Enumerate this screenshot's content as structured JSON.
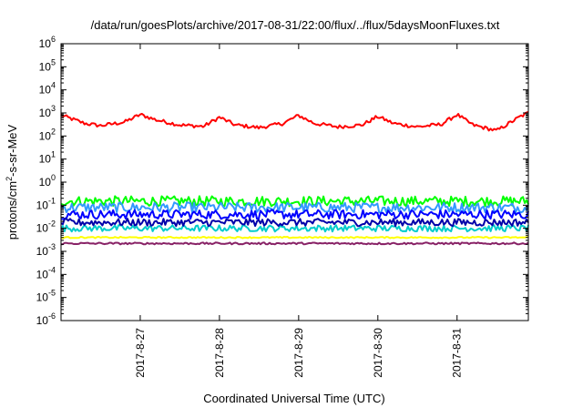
{
  "chart_data": {
    "type": "line",
    "title": "/data/run/goesPlots/archive/2017-08-31/22:00/flux/../flux/5daysMoonFluxes.txt",
    "xlabel": "Coordinated Universal Time (UTC)",
    "ylabel": "protons/cm2-s-sr-MeV",
    "ylabel_parts": {
      "main": "protons/cm",
      "sup": "2",
      "rest": "-s-sr-MeV"
    },
    "yscale": "log",
    "ylim": [
      1e-06,
      1000000.0
    ],
    "xlim": [
      0,
      5.9
    ],
    "x_tick_positions": [
      1,
      2,
      3,
      4,
      5
    ],
    "x_tick_labels": [
      "2017-8-27",
      "2017-8-28",
      "2017-8-29",
      "2017-8-30",
      "2017-8-31"
    ],
    "y_tick_exponents": [
      -6,
      -5,
      -4,
      -3,
      -2,
      -1,
      0,
      1,
      2,
      3,
      4,
      5,
      6
    ],
    "y_tick_base": "10",
    "grid": false,
    "legend": "none",
    "series": [
      {
        "color": "#ff0000",
        "x": [
          0,
          0.3,
          0.5,
          0.8,
          1.0,
          1.2,
          1.5,
          1.8,
          2.0,
          2.2,
          2.5,
          2.8,
          3.0,
          3.2,
          3.5,
          3.8,
          4.0,
          4.2,
          4.5,
          4.8,
          5.0,
          5.2,
          5.5,
          5.8,
          5.9
        ],
        "values": [
          800,
          350,
          280,
          400,
          850,
          500,
          300,
          260,
          650,
          300,
          230,
          350,
          780,
          350,
          250,
          300,
          700,
          350,
          250,
          320,
          850,
          300,
          170,
          700,
          1000
        ]
      },
      {
        "color": "#00ff00",
        "x": [
          0,
          1,
          2,
          3,
          4,
          5,
          5.9
        ],
        "values": [
          0.15,
          0.15,
          0.15,
          0.15,
          0.15,
          0.15,
          0.15
        ]
      },
      {
        "color": "#3399ff",
        "x": [
          0,
          1,
          2,
          3,
          4,
          5,
          5.9
        ],
        "values": [
          0.08,
          0.08,
          0.08,
          0.08,
          0.08,
          0.08,
          0.08
        ]
      },
      {
        "color": "#0000ff",
        "x": [
          0,
          1,
          2,
          3,
          4,
          5,
          5.9
        ],
        "values": [
          0.04,
          0.04,
          0.04,
          0.04,
          0.04,
          0.04,
          0.04
        ]
      },
      {
        "color": "#0000aa",
        "x": [
          0,
          1,
          2,
          3,
          4,
          5,
          5.9
        ],
        "values": [
          0.018,
          0.018,
          0.018,
          0.018,
          0.018,
          0.018,
          0.018
        ]
      },
      {
        "color": "#00cccc",
        "x": [
          0,
          1,
          2,
          3,
          4,
          5,
          5.9
        ],
        "values": [
          0.01,
          0.01,
          0.01,
          0.01,
          0.01,
          0.01,
          0.01
        ]
      },
      {
        "color": "#ffff00",
        "x": [
          0,
          1,
          2,
          3,
          4,
          5,
          5.9
        ],
        "values": [
          0.004,
          0.004,
          0.004,
          0.004,
          0.004,
          0.004,
          0.004
        ]
      },
      {
        "color": "#882266",
        "x": [
          0,
          1,
          2,
          3,
          4,
          5,
          5.9
        ],
        "values": [
          0.0022,
          0.0022,
          0.0022,
          0.0022,
          0.0022,
          0.0022,
          0.0022
        ]
      }
    ]
  }
}
